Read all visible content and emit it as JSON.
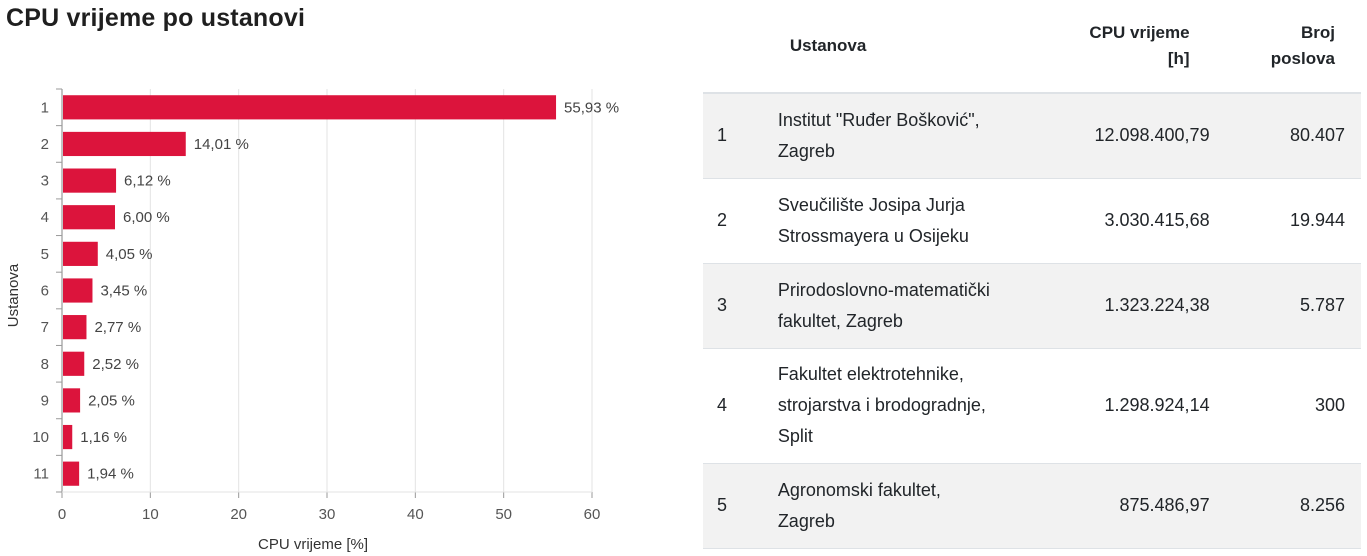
{
  "page": {
    "title": "CPU vrijeme po ustanovi"
  },
  "chart_data": {
    "type": "bar",
    "orientation": "horizontal",
    "title": "CPU vrijeme po ustanovi",
    "xlabel": "CPU vrijeme [%]",
    "ylabel": "Ustanova",
    "xlim": [
      0,
      60
    ],
    "xticks": [
      0,
      10,
      20,
      30,
      40,
      50,
      60
    ],
    "categories": [
      "1",
      "2",
      "3",
      "4",
      "5",
      "6",
      "7",
      "8",
      "9",
      "10",
      "11"
    ],
    "values": [
      55.93,
      14.01,
      6.12,
      6.0,
      4.05,
      3.45,
      2.77,
      2.52,
      2.05,
      1.16,
      1.94
    ],
    "labels": [
      "55,93 %",
      "14,01 %",
      "6,12 %",
      "6,00 %",
      "4,05 %",
      "3,45 %",
      "2,77 %",
      "2,52 %",
      "2,05 %",
      "1,16 %",
      "1,94 %"
    ],
    "bar_color": "#dc143c",
    "grid": true
  },
  "table": {
    "headers": {
      "name": "Ustanova",
      "cpu_line1": "CPU vrijeme",
      "cpu_line2": "[h]",
      "jobs_line1": "Broj",
      "jobs_line2": "poslova"
    },
    "rows": [
      {
        "rank": "1",
        "name_line1": "Institut \"Ruđer Bošković\",",
        "name_line2": "Zagreb",
        "name_line3": "",
        "cpu": "12.098.400,79",
        "jobs": "80.407"
      },
      {
        "rank": "2",
        "name_line1": "Sveučilište Josipa Jurja",
        "name_line2": "Strossmayera u Osijeku",
        "name_line3": "",
        "cpu": "3.030.415,68",
        "jobs": "19.944"
      },
      {
        "rank": "3",
        "name_line1": "Prirodoslovno-matematički",
        "name_line2": "fakultet, Zagreb",
        "name_line3": "",
        "cpu": "1.323.224,38",
        "jobs": "5.787"
      },
      {
        "rank": "4",
        "name_line1": "Fakultet elektrotehnike,",
        "name_line2": "strojarstva i brodogradnje,",
        "name_line3": "Split",
        "cpu": "1.298.924,14",
        "jobs": "300"
      },
      {
        "rank": "5",
        "name_line1": "Agronomski fakultet,",
        "name_line2": "Zagreb",
        "name_line3": "",
        "cpu": "875.486,97",
        "jobs": "8.256"
      }
    ]
  }
}
